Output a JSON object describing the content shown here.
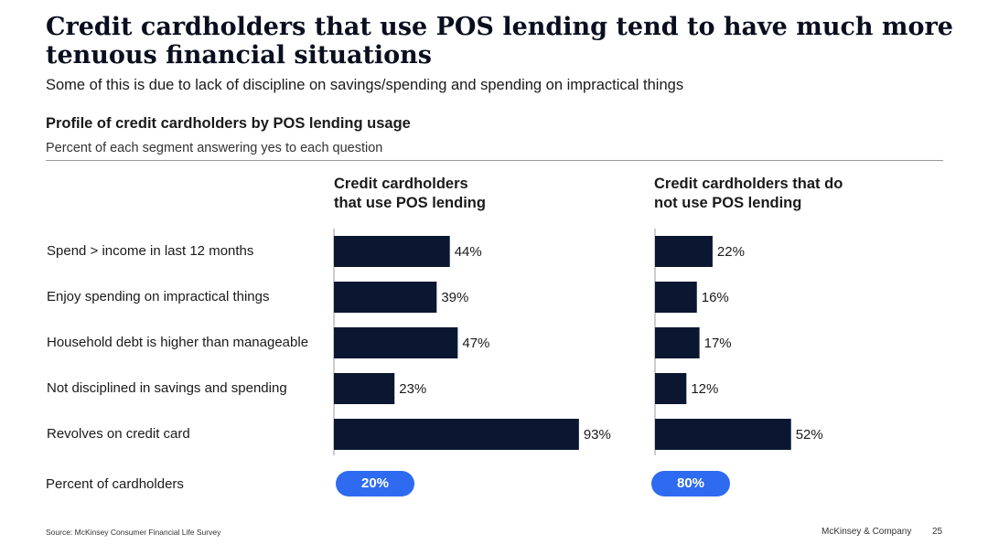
{
  "title": "Credit cardholders that use POS lending tend to have much more tenuous financial situations",
  "subtitle": "Some of this is due to lack of discipline on savings/spending and spending on impractical things",
  "section_title": "Profile of credit cardholders by POS lending usage",
  "section_subtitle": "Percent of each segment answering yes to each question",
  "row_labels": [
    "Spend > income in last 12 months",
    "Enjoy spending on impractical things",
    "Household debt is higher than manageable",
    "Not disciplined in savings and spending",
    "Revolves on credit card"
  ],
  "percent_of_cardholders_label": "Percent of cardholders",
  "colors": {
    "bar": "#0b1730",
    "pill": "#2f6bf0"
  },
  "chart_data": [
    {
      "type": "bar",
      "orientation": "horizontal",
      "title": "Credit cardholders\nthat use POS lending",
      "categories": [
        "Spend > income in last 12 months",
        "Enjoy spending on impractical things",
        "Household debt is higher than manageable",
        "Not disciplined in savings and spending",
        "Revolves on credit card"
      ],
      "values": [
        44,
        39,
        47,
        23,
        93
      ],
      "value_labels": [
        "44%",
        "39%",
        "47%",
        "23%",
        "93%"
      ],
      "xlim": [
        0,
        100
      ],
      "share_of_cardholders": "20%"
    },
    {
      "type": "bar",
      "orientation": "horizontal",
      "title": "Credit cardholders that do\nnot use POS lending",
      "categories": [
        "Spend > income in last 12 months",
        "Enjoy spending on impractical things",
        "Household debt is higher than manageable",
        "Not disciplined in savings and spending",
        "Revolves on credit card"
      ],
      "values": [
        22,
        16,
        17,
        12,
        52
      ],
      "value_labels": [
        "22%",
        "16%",
        "17%",
        "12%",
        "52%"
      ],
      "xlim": [
        0,
        100
      ],
      "share_of_cardholders": "80%"
    }
  ],
  "footer": {
    "source": "Source: McKinsey Consumer Financial Life Survey",
    "brand": "McKinsey & Company",
    "page": "25"
  }
}
